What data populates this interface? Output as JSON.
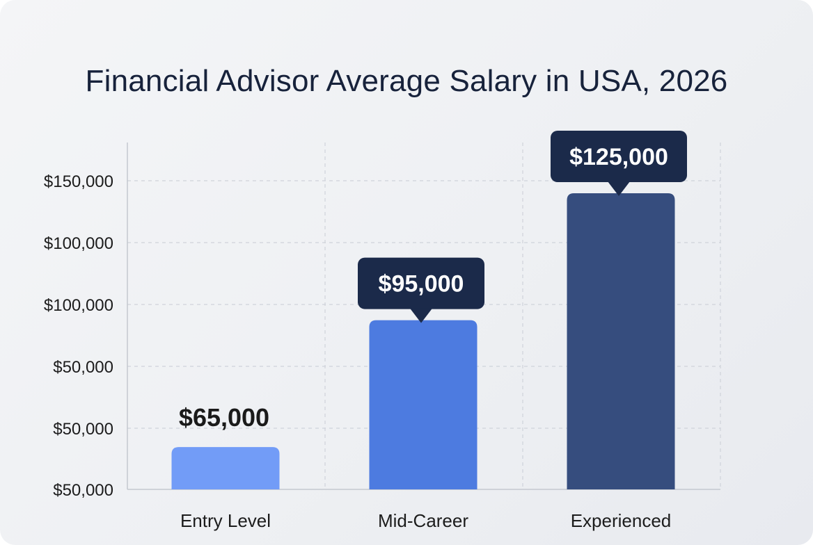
{
  "chart_data": {
    "type": "bar",
    "title": "Financial Advisor Average Salary in USA, 2026",
    "xlabel": "",
    "ylabel": "",
    "categories": [
      "Entry Level",
      "Mid-Career",
      "Experienced"
    ],
    "values": [
      65000,
      95000,
      125000
    ],
    "data_labels": [
      "$65,000",
      "$95,000",
      "$125,000"
    ],
    "y_tick_labels": [
      "$50,000",
      "$50,000",
      "$50,000",
      "$100,000",
      "$100,000",
      "$150,000"
    ],
    "grid": true,
    "legend": "none",
    "colors": [
      "#729cf7",
      "#4d7be0",
      "#364d7e"
    ],
    "label_bubble_color": "#1b2a4a"
  }
}
